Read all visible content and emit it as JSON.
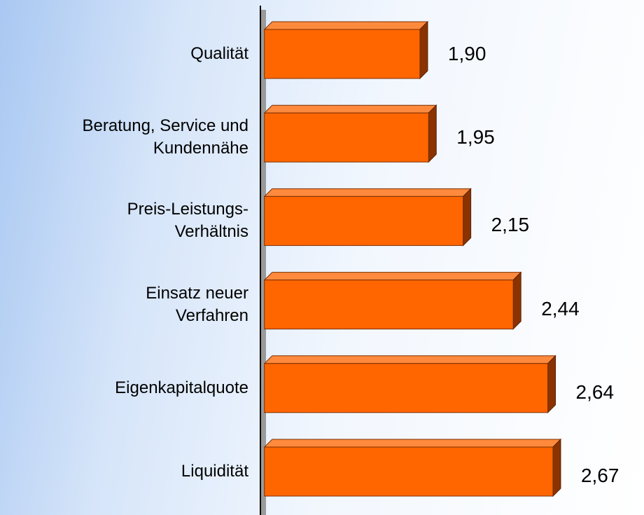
{
  "chart_data": {
    "type": "bar",
    "orientation": "horizontal",
    "categories": [
      "Qualität",
      "Beratung, Service und\nKundennähe",
      "Preis-Leistungs-\nVerhältnis",
      "Einsatz neuer\nVerfahren",
      "Eigenkapitalquote",
      "Liquidität"
    ],
    "values": [
      1.9,
      1.95,
      2.15,
      2.44,
      2.64,
      2.67
    ],
    "value_labels": [
      "1,90",
      "1,95",
      "2,15",
      "2,44",
      "2,64",
      "2,67"
    ],
    "color": "#ff6600",
    "xlim": [
      1,
      3
    ]
  }
}
